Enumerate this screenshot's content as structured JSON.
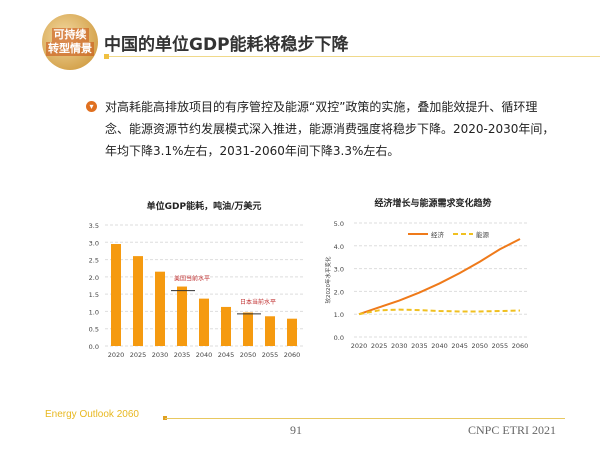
{
  "header": {
    "logo_text": [
      "可持续",
      "转型情景"
    ],
    "title": "中国的单位GDP能耗将稳步下降"
  },
  "body_text": "对高耗能高排放项目的有序管控及能源“双控”政策的实施，叠加能效提升、循环理念、能源资源节约发展模式深入推进，能源消费强度将稳步下降。2020-2030年间，年均下降3.1%左右，2031-2060年间下降3.3%左右。",
  "colors": {
    "accent": "#f59a10",
    "energy": "#f0c020",
    "economy": "#ef7a1a"
  },
  "chart_data": [
    {
      "type": "bar",
      "title": "单位GDP能耗，吨油/万美元",
      "categories": [
        "2020",
        "2025",
        "2030",
        "2035",
        "2040",
        "2045",
        "2050",
        "2055",
        "2060"
      ],
      "values": [
        2.95,
        2.6,
        2.15,
        1.72,
        1.37,
        1.13,
        0.97,
        0.86,
        0.79
      ],
      "ylim": [
        0,
        3.5
      ],
      "yticks": [
        "0.0",
        "0.5",
        "1.0",
        "1.5",
        "2.0",
        "2.5",
        "3.0",
        "3.5"
      ],
      "grid": true,
      "annotations": [
        {
          "text": "美国当前水平",
          "value": 1.6,
          "from": "2035"
        },
        {
          "text": "日本当前水平",
          "value": 0.93,
          "from": "2050"
        }
      ]
    },
    {
      "type": "line",
      "title": "经济增长与能源需求变化趋势",
      "ylabel": "较2020年水平变化",
      "categories": [
        "2020",
        "2025",
        "2030",
        "2035",
        "2040",
        "2045",
        "2050",
        "2055",
        "2060"
      ],
      "series": [
        {
          "name": "经济",
          "values": [
            1.0,
            1.3,
            1.6,
            1.95,
            2.35,
            2.8,
            3.3,
            3.85,
            4.3
          ]
        },
        {
          "name": "能源",
          "values": [
            1.0,
            1.17,
            1.2,
            1.18,
            1.14,
            1.12,
            1.12,
            1.14,
            1.16
          ]
        }
      ],
      "ylim": [
        0,
        5
      ],
      "yticks": [
        "0.0",
        "1.0",
        "2.0",
        "3.0",
        "4.0",
        "5.0"
      ],
      "grid": true,
      "legend": "top"
    }
  ],
  "footer": {
    "left": "Energy Outlook 2060",
    "page": "91",
    "right": "CNPC ETRI 2021"
  }
}
